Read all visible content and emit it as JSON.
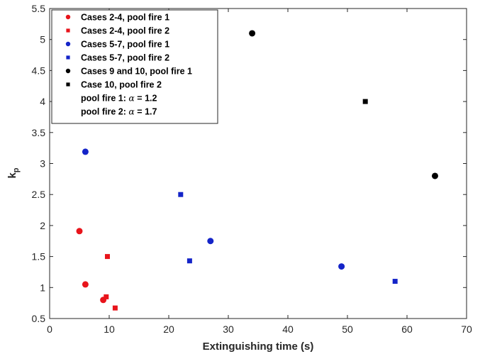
{
  "chart_data": {
    "type": "scatter",
    "xlabel": "Extinguishing time (s)",
    "ylabel_base": "k",
    "ylabel_sub": "p",
    "xlim": [
      0,
      70
    ],
    "ylim": [
      0.5,
      5.5
    ],
    "xticks": [
      "0",
      "10",
      "20",
      "30",
      "40",
      "50",
      "60",
      "70"
    ],
    "yticks": [
      "0.5",
      "1",
      "1.5",
      "2",
      "2.5",
      "3",
      "3.5",
      "4",
      "4.5",
      "5",
      "5.5"
    ],
    "grid": false,
    "legend_position": "top-left",
    "series": [
      {
        "name": "Cases 2-4, pool fire 1",
        "marker": "circle",
        "color": "#e8141b",
        "x": [
          5,
          6,
          9
        ],
        "y": [
          1.91,
          1.05,
          0.8
        ]
      },
      {
        "name": "Cases 2-4, pool fire 2",
        "marker": "square",
        "color": "#e8141b",
        "x": [
          9.7,
          9.5,
          11
        ],
        "y": [
          1.5,
          0.85,
          0.67
        ]
      },
      {
        "name": "Cases 5-7, pool fire 1",
        "marker": "circle",
        "color": "#1424c8",
        "x": [
          6,
          27,
          49
        ],
        "y": [
          3.19,
          1.75,
          1.34
        ]
      },
      {
        "name": "Cases 5-7, pool fire 2",
        "marker": "square",
        "color": "#1424c8",
        "x": [
          22,
          23.5,
          58
        ],
        "y": [
          2.5,
          1.43,
          1.1
        ]
      },
      {
        "name": "Cases 9 and 10, pool fire 1",
        "marker": "circle",
        "color": "#000000",
        "x": [
          34,
          64.7
        ],
        "y": [
          5.1,
          2.8
        ]
      },
      {
        "name": "Case 10, pool fire 2",
        "marker": "square",
        "color": "#000000",
        "x": [
          53
        ],
        "y": [
          4.0
        ]
      }
    ],
    "legend_notes": [
      {
        "prefix": "pool fire 1: ",
        "symbol": "α",
        "suffix": " = 1.2"
      },
      {
        "prefix": "pool fire 2: ",
        "symbol": "α",
        "suffix": " = 1.7"
      }
    ]
  }
}
